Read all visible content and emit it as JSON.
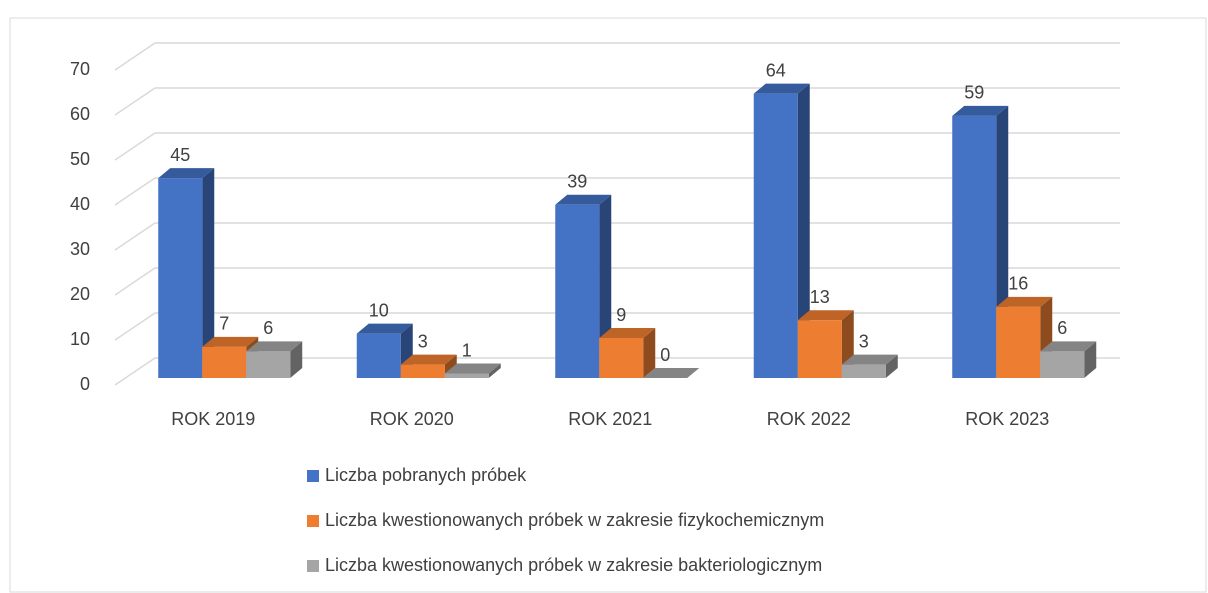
{
  "chart_data": {
    "type": "bar3d",
    "categories": [
      "ROK 2019",
      "ROK 2020",
      "ROK 2021",
      "ROK 2022",
      "ROK 2023"
    ],
    "series": [
      {
        "name": "Liczba pobranych próbek",
        "color": "#4472c4",
        "values": [
          45,
          10,
          39,
          64,
          59
        ]
      },
      {
        "name": "Liczba kwestionowanych próbek w zakresie fizykochemicznym",
        "color": "#ed7d31",
        "values": [
          7,
          3,
          9,
          13,
          16
        ]
      },
      {
        "name": "Liczba kwestionowanych próbek w zakresie bakteriologicznym",
        "color": "#a5a5a5",
        "values": [
          6,
          1,
          0,
          3,
          6
        ]
      }
    ],
    "ylim": [
      0,
      70
    ],
    "yticks": [
      0,
      10,
      20,
      30,
      40,
      50,
      60,
      70
    ],
    "grid": true,
    "legend": "bottom"
  }
}
